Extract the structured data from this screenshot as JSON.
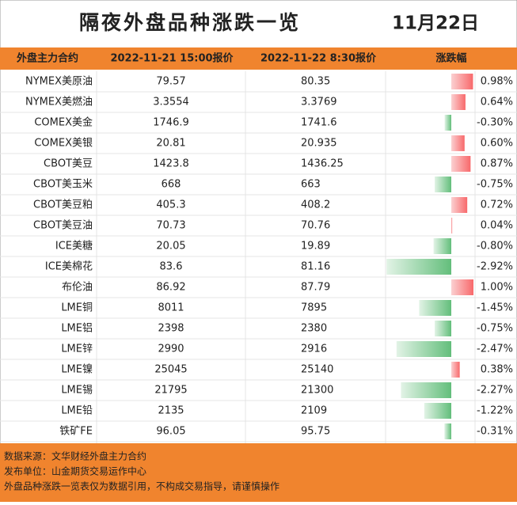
{
  "header": {
    "title": "隔夜外盘品种涨跌一览",
    "date": "11月22日"
  },
  "table": {
    "columns": [
      "外盘主力合约",
      "2022-11-21 15:00报价",
      "2022-11-22 8:30报价",
      "涨跌幅"
    ],
    "rows": [
      {
        "name": "NYMEX美原油",
        "prev": "79.57",
        "now": "80.35",
        "change": 0.98,
        "change_label": "0.98%"
      },
      {
        "name": "NYMEX美燃油",
        "prev": "3.3554",
        "now": "3.3769",
        "change": 0.64,
        "change_label": "0.64%"
      },
      {
        "name": "COMEX美金",
        "prev": "1746.9",
        "now": "1741.6",
        "change": -0.3,
        "change_label": "-0.30%"
      },
      {
        "name": "COMEX美银",
        "prev": "20.81",
        "now": "20.935",
        "change": 0.6,
        "change_label": "0.60%"
      },
      {
        "name": "CBOT美豆",
        "prev": "1423.8",
        "now": "1436.25",
        "change": 0.87,
        "change_label": "0.87%"
      },
      {
        "name": "CBOT美玉米",
        "prev": "668",
        "now": "663",
        "change": -0.75,
        "change_label": "-0.75%"
      },
      {
        "name": "CBOT美豆粕",
        "prev": "405.3",
        "now": "408.2",
        "change": 0.72,
        "change_label": "0.72%"
      },
      {
        "name": "CBOT美豆油",
        "prev": "70.73",
        "now": "70.76",
        "change": 0.04,
        "change_label": "0.04%"
      },
      {
        "name": "ICE美糖",
        "prev": "20.05",
        "now": "19.89",
        "change": -0.8,
        "change_label": "-0.80%"
      },
      {
        "name": "ICE美棉花",
        "prev": "83.6",
        "now": "81.16",
        "change": -2.92,
        "change_label": "-2.92%"
      },
      {
        "name": "布伦油",
        "prev": "86.92",
        "now": "87.79",
        "change": 1.0,
        "change_label": "1.00%"
      },
      {
        "name": "LME铜",
        "prev": "8011",
        "now": "7895",
        "change": -1.45,
        "change_label": "-1.45%"
      },
      {
        "name": "LME铝",
        "prev": "2398",
        "now": "2380",
        "change": -0.75,
        "change_label": "-0.75%"
      },
      {
        "name": "LME锌",
        "prev": "2990",
        "now": "2916",
        "change": -2.47,
        "change_label": "-2.47%"
      },
      {
        "name": "LME镍",
        "prev": "25045",
        "now": "25140",
        "change": 0.38,
        "change_label": "0.38%"
      },
      {
        "name": "LME锡",
        "prev": "21795",
        "now": "21300",
        "change": -2.27,
        "change_label": "-2.27%"
      },
      {
        "name": "LME铅",
        "prev": "2135",
        "now": "2109",
        "change": -1.22,
        "change_label": "-1.22%"
      },
      {
        "name": "铁矿FE",
        "prev": "96.05",
        "now": "95.75",
        "change": -0.31,
        "change_label": "-0.31%"
      }
    ]
  },
  "footer": {
    "lines": [
      "数据来源：文华财经外盘主力合约",
      "发布单位：山金期货交易运作中心",
      "外盘品种涨跌一览表仅为数据引用，不构成交易指导，请谨慎操作"
    ]
  }
}
